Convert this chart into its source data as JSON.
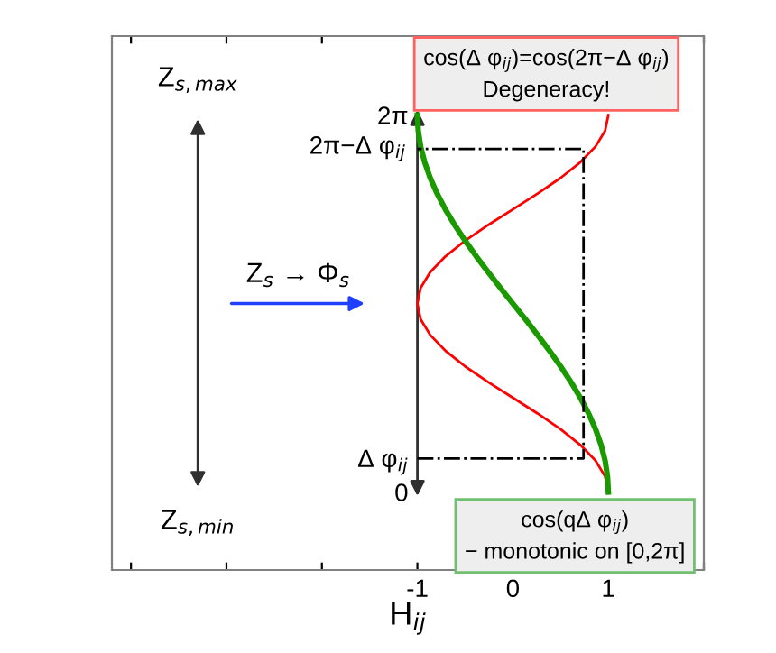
{
  "chart_data": {
    "type": "line",
    "xlabel": "H$_{ij}$",
    "xlim": [
      -4.2,
      2
    ],
    "ylim": [
      -1.3,
      7.6
    ],
    "xticks": [
      {
        "value": -4,
        "label": null
      },
      {
        "value": -3,
        "label": null
      },
      {
        "value": -2,
        "label": null
      },
      -1,
      0,
      1,
      {
        "value": 2,
        "label": null
      }
    ],
    "yticks": [
      {
        "value": 0,
        "label": "0"
      },
      {
        "value": 0.56,
        "label": "Δ φ$_{ij}$"
      },
      {
        "value": 6.283,
        "label": "2π"
      }
    ],
    "grid": false,
    "legend": false,
    "marker": "none",
    "series": [
      {
        "color": "#ff0000",
        "line_style": "solid",
        "x": [
          1,
          0.966,
          0.866,
          0.707,
          0.5,
          0.259,
          0,
          -0.259,
          -0.5,
          -0.707,
          -0.866,
          -0.966,
          -1,
          -0.966,
          -0.866,
          -0.707,
          -0.5,
          -0.259,
          0,
          0.259,
          0.5,
          0.707,
          0.866,
          0.966,
          1
        ],
        "values": [
          0,
          0.262,
          0.524,
          0.785,
          1.047,
          1.309,
          1.571,
          1.833,
          2.094,
          2.356,
          2.618,
          2.88,
          3.142,
          3.403,
          3.665,
          3.927,
          4.189,
          4.451,
          4.712,
          4.974,
          5.236,
          5.498,
          5.76,
          6.021,
          6.283
        ]
      },
      {
        "color": "#1a9900",
        "line_style": "solid",
        "x": [
          1,
          0.991,
          0.966,
          0.924,
          0.866,
          0.793,
          0.707,
          0.609,
          0.5,
          0.383,
          0.259,
          0.131,
          0,
          -0.131,
          -0.259,
          -0.383,
          -0.5,
          -0.609,
          -0.707,
          -0.793,
          -0.866,
          -0.924,
          -0.966,
          -0.991,
          -1
        ],
        "values": [
          0,
          0.262,
          0.524,
          0.785,
          1.047,
          1.309,
          1.571,
          1.833,
          2.094,
          2.356,
          2.618,
          2.88,
          3.142,
          3.403,
          3.665,
          3.927,
          4.189,
          4.451,
          4.712,
          4.974,
          5.236,
          5.498,
          5.76,
          6.021,
          6.283
        ]
      },
      {
        "color": "#000000",
        "line_style": "dashdot",
        "x": [
          -1,
          0.74,
          0.74,
          -1
        ],
        "values": [
          0.56,
          0.56,
          5.72,
          5.72
        ]
      }
    ],
    "annotations": [
      {
        "text": "2π−Δ φ$_{ij}$",
        "x": -1,
        "y": 5.72
      },
      "Z$_{s,max}$",
      "Z$_{s,min}$",
      "Z$_{s}$ → Φ$_{s}$",
      "cos(Δ φ$_{ij}$)=cos(2π−Δ φ$_{ij}$)\nDegeneracy!",
      "cos(qΔ φ$_{ij}$)\n− monotonic on [0,2π]"
    ]
  }
}
